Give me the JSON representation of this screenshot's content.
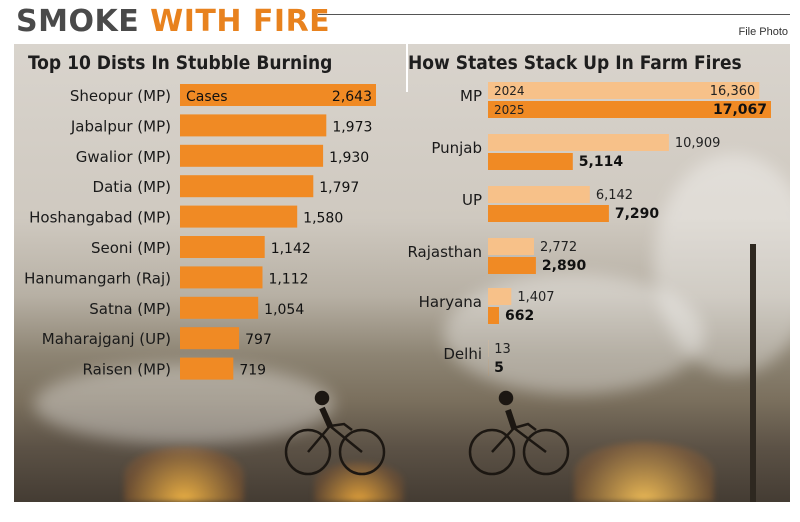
{
  "header": {
    "title_part1": "SMOKE",
    "title_part2": "WITH FIRE",
    "photo_credit": "File Photo"
  },
  "colors": {
    "bar_2025": "#f08a24",
    "bar_2024": "#f7c189",
    "title_accent": "#e8821e",
    "title_dark": "#4a4a4a"
  },
  "chart_data": [
    {
      "type": "bar",
      "orientation": "horizontal",
      "title": "Top 10 Dists In Stubble Burning",
      "series_label": "Cases",
      "categories": [
        "Sheopur (MP)",
        "Jabalpur (MP)",
        "Gwalior (MP)",
        "Datia (MP)",
        "Hoshangabad (MP)",
        "Seoni (MP)",
        "Hanumangarh (Raj)",
        "Satna (MP)",
        "Maharajganj (UP)",
        "Raisen (MP)"
      ],
      "values": [
        2643,
        1973,
        1930,
        1797,
        1580,
        1142,
        1112,
        1054,
        797,
        719
      ],
      "value_labels": [
        "2,643",
        "1,973",
        "1,930",
        "1,797",
        "1,580",
        "1,142",
        "1,112",
        "1,054",
        "797",
        "719"
      ]
    },
    {
      "type": "bar",
      "orientation": "horizontal",
      "title": "How States Stack Up In Farm Fires",
      "categories": [
        "MP",
        "Punjab",
        "UP",
        "Rajasthan",
        "Haryana",
        "Delhi"
      ],
      "series": [
        {
          "name": "2024",
          "values": [
            16360,
            10909,
            6142,
            2772,
            1407,
            13
          ],
          "value_labels": [
            "16,360",
            "10,909",
            "6,142",
            "2,772",
            "1,407",
            "13"
          ]
        },
        {
          "name": "2025",
          "values": [
            17067,
            5114,
            7290,
            2890,
            662,
            5
          ],
          "value_labels": [
            "17,067",
            "5,114",
            "7,290",
            "2,890",
            "662",
            "5"
          ]
        }
      ]
    }
  ]
}
